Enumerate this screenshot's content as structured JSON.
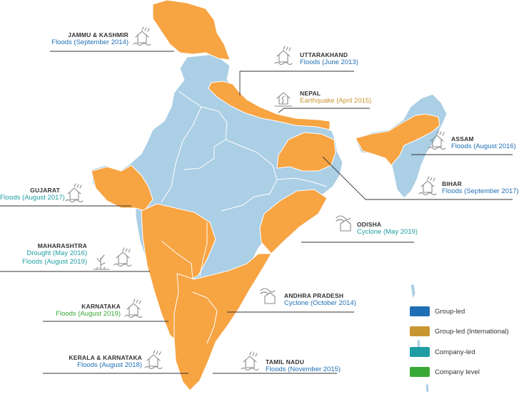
{
  "colors": {
    "land": "#abcfe5",
    "affected": "#f7a443",
    "border": "#ffffff",
    "leader": "#333333",
    "icon": "#8a8a8a",
    "group_led": "#1f6fb5",
    "group_led_international": "#c89631",
    "company_led": "#1f9da2",
    "company_level": "#39a935"
  },
  "callouts": [
    {
      "name": "JAMMU & KASHMIR",
      "event": "Floods (September 2014)",
      "category": "group_led",
      "icon": "flood-house-icon"
    },
    {
      "name": "UTTARAKHAND",
      "event": "Floods (June 2013)",
      "category": "group_led",
      "icon": "flood-house-icon"
    },
    {
      "name": "NEPAL",
      "event": "Earthquake (April 2015)",
      "category": "group_led_international",
      "icon": "earthquake-house-icon"
    },
    {
      "name": "ASSAM",
      "event": "Floods (August 2016)",
      "category": "group_led",
      "icon": "flood-house-icon"
    },
    {
      "name": "BIHAR",
      "event": "Floods (September 2017)",
      "category": "group_led",
      "icon": "flood-house-icon"
    },
    {
      "name": "GUJARAT",
      "event": "Floods (August 2017)",
      "category": "company_led",
      "icon": "flood-house-icon"
    },
    {
      "name": "ODISHA",
      "event": "Cyclone (May 2019)",
      "category": "company_led",
      "icon": "cyclone-house-icon"
    },
    {
      "name": "MAHARASHTRA",
      "event": "Drought (May 2016)",
      "event2": "Floods (August 2019)",
      "category": "company_led",
      "icon": "drought-flood-icon"
    },
    {
      "name": "ANDHRA PRADESH",
      "event": "Cyclone (October 2014)",
      "category": "group_led",
      "icon": "cyclone-house-icon"
    },
    {
      "name": "KARNATAKA",
      "event": "Floods (August 2019)",
      "category": "company_level",
      "icon": "flood-house-icon"
    },
    {
      "name": "KERALA & KARNATAKA",
      "event": "Floods (August 2018)",
      "category": "group_led",
      "icon": "flood-house-icon"
    },
    {
      "name": "TAMIL NADU",
      "event": "Floods (November 2015)",
      "category": "group_led",
      "icon": "flood-house-icon"
    }
  ],
  "legend": [
    {
      "label": "Group-led",
      "category": "group_led"
    },
    {
      "label": "Group-led (International)",
      "category": "group_led_international"
    },
    {
      "label": "Company-led",
      "category": "company_led"
    },
    {
      "label": "Company level",
      "category": "company_level"
    }
  ]
}
